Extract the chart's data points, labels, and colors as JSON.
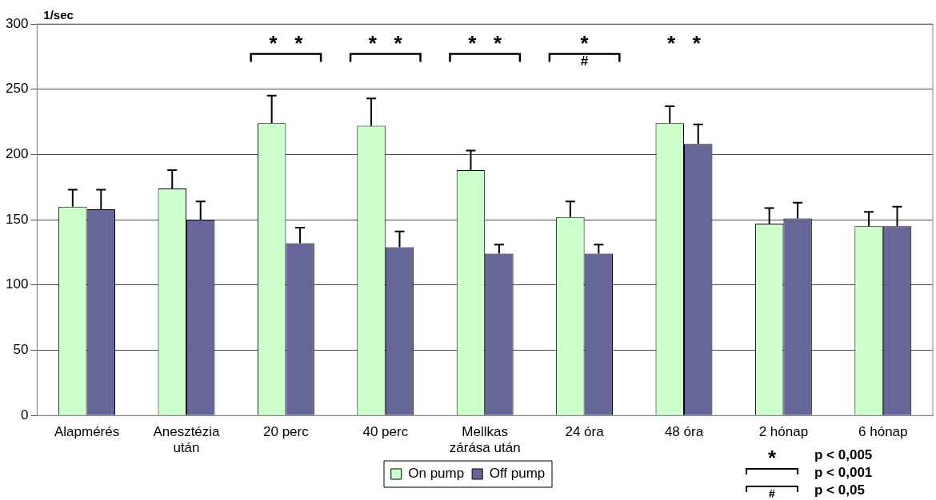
{
  "chart_data": {
    "type": "bar",
    "ylabel": "1/sec",
    "categories": [
      "Alapmérés",
      "Anesztézia után",
      "20 perc",
      "40 perc",
      "Mellkas zárása után",
      "24 óra",
      "48 óra",
      "2 hónap",
      "6 hónap"
    ],
    "series": [
      {
        "name": "On pump",
        "color": "#ccffcc",
        "values": [
          160,
          174,
          224,
          222,
          188,
          152,
          224,
          147,
          145
        ],
        "errors": [
          13,
          14,
          21,
          21,
          15,
          12,
          13,
          12,
          11
        ]
      },
      {
        "name": "Off pump",
        "color": "#666699",
        "values": [
          158,
          150,
          132,
          129,
          124,
          124,
          208,
          151,
          145
        ],
        "errors": [
          15,
          14,
          12,
          12,
          7,
          7,
          15,
          12,
          15
        ]
      }
    ],
    "ylim": [
      0,
      300
    ],
    "yticks": [
      0,
      50,
      100,
      150,
      200,
      250,
      300
    ],
    "grid": "y",
    "legend": "bottom",
    "annotations": [
      "*   *",
      "*   *",
      "*   *",
      "*",
      "#",
      "*   *",
      "*",
      "p < 0,005",
      "p < 0,001",
      "#",
      "p < 0,05"
    ]
  }
}
